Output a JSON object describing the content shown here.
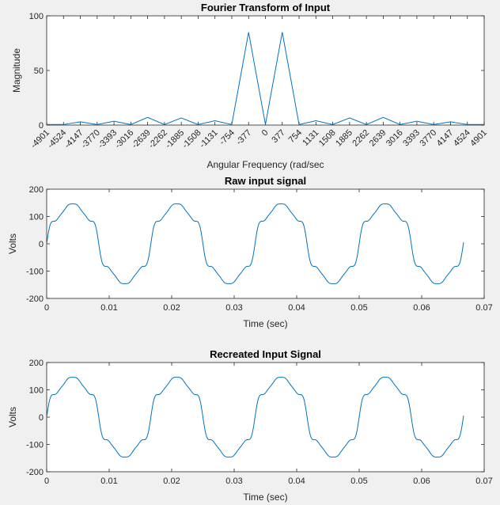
{
  "chart_data": [
    {
      "type": "line",
      "title": "Fourier Transform of Input",
      "xlabel": "Angular Frequency (rad/sec",
      "ylabel": "Magnitude",
      "xlim": [
        -4901,
        4901
      ],
      "ylim": [
        0,
        100
      ],
      "xticks": [
        -4901,
        -4524,
        -4147,
        -3770,
        -3393,
        -3016,
        -2639,
        -2262,
        -1885,
        -1508,
        -1131,
        -754,
        -377,
        0,
        377,
        754,
        1131,
        1508,
        1885,
        2262,
        2639,
        3016,
        3393,
        3770,
        4147,
        4524,
        4901
      ],
      "xtick_labels": [
        "-4901",
        "-4524",
        "-4147",
        "-3770",
        "-3393",
        "-3016",
        "-2639",
        "-2262",
        "-1885",
        "-1508",
        "-1131",
        "-754",
        "-377",
        "0",
        "377",
        "754",
        "1131",
        "1508",
        "1885",
        "2262",
        "2639",
        "3016",
        "3393",
        "3770",
        "4147",
        "4524",
        "4901"
      ],
      "yticks": [
        0,
        50,
        100
      ],
      "series": [
        {
          "color": "#0072bd",
          "x": [
            -4901,
            -4524,
            -4147,
            -3770,
            -3393,
            -3016,
            -2639,
            -2262,
            -1885,
            -1508,
            -1131,
            -754,
            -377,
            0,
            377,
            754,
            1131,
            1508,
            1885,
            2262,
            2639,
            3016,
            3393,
            3770,
            4147,
            4524,
            4901
          ],
          "values": [
            0.5,
            0.5,
            3,
            0.5,
            3.5,
            0.5,
            7,
            0.5,
            6.5,
            0.5,
            4,
            0.5,
            85,
            0.5,
            85,
            0.5,
            4,
            0.5,
            6.5,
            0.5,
            7,
            0.5,
            3.5,
            0.5,
            3,
            0.5,
            0.5
          ]
        }
      ]
    },
    {
      "type": "line",
      "title": "Raw input signal",
      "xlabel": "Time (sec)",
      "ylabel": "Volts",
      "xlim": [
        0,
        0.07
      ],
      "ylim": [
        -200,
        200
      ],
      "xticks": [
        0,
        0.01,
        0.02,
        0.03,
        0.04,
        0.05,
        0.06,
        0.07
      ],
      "xtick_labels": [
        "0",
        "0.01",
        "0.02",
        "0.03",
        "0.04",
        "0.05",
        "0.06",
        "0.07"
      ],
      "yticks": [
        -200,
        -100,
        0,
        100,
        200
      ],
      "series": [
        {
          "color": "#0072bd",
          "model": "harmonic sum",
          "fundamental_hz": 60,
          "t_end": 0.0667,
          "harmonics": [
            {
              "n": 1,
              "amplitude": 150
            },
            {
              "n": 3,
              "amplitude": 12
            },
            {
              "n": 5,
              "amplitude": 16
            },
            {
              "n": 7,
              "amplitude": 10
            },
            {
              "n": 9,
              "amplitude": 5
            },
            {
              "n": 11,
              "amplitude": 3
            }
          ]
        }
      ]
    },
    {
      "type": "line",
      "title": "Recreated Input Signal",
      "xlabel": "Time (sec)",
      "ylabel": "Volts",
      "xlim": [
        0,
        0.07
      ],
      "ylim": [
        -200,
        200
      ],
      "xticks": [
        0,
        0.01,
        0.02,
        0.03,
        0.04,
        0.05,
        0.06,
        0.07
      ],
      "xtick_labels": [
        "0",
        "0.01",
        "0.02",
        "0.03",
        "0.04",
        "0.05",
        "0.06",
        "0.07"
      ],
      "yticks": [
        -200,
        -100,
        0,
        100,
        200
      ],
      "series": [
        {
          "color": "#0072bd",
          "model": "harmonic sum",
          "fundamental_hz": 60,
          "t_end": 0.0667,
          "harmonics": [
            {
              "n": 1,
              "amplitude": 150
            },
            {
              "n": 3,
              "amplitude": 12
            },
            {
              "n": 5,
              "amplitude": 16
            },
            {
              "n": 7,
              "amplitude": 10
            },
            {
              "n": 9,
              "amplitude": 5
            },
            {
              "n": 11,
              "amplitude": 3
            }
          ]
        }
      ]
    }
  ]
}
